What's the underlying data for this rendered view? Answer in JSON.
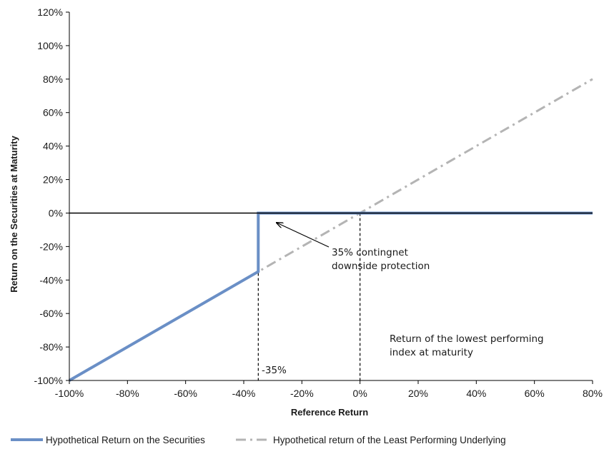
{
  "chart_data": {
    "type": "line",
    "xlabel": "Reference Return",
    "ylabel": "Return on the Securities at Maturity",
    "xlim": [
      -100,
      80
    ],
    "ylim": [
      -100,
      120
    ],
    "x_ticks": [
      -100,
      -80,
      -60,
      -40,
      -20,
      0,
      20,
      40,
      60,
      80
    ],
    "y_ticks": [
      -100,
      -80,
      -60,
      -40,
      -20,
      0,
      20,
      40,
      60,
      80,
      100,
      120
    ],
    "x_tick_labels": [
      "-100%",
      "-80%",
      "-60%",
      "-40%",
      "-20%",
      "0%",
      "20%",
      "40%",
      "60%",
      "80%"
    ],
    "y_tick_labels": [
      "-100%",
      "-80%",
      "-60%",
      "-40%",
      "-20%",
      "0%",
      "20%",
      "40%",
      "60%",
      "80%",
      "100%",
      "120%"
    ],
    "grid": false,
    "legend_position": "bottom",
    "series": [
      {
        "name": "Hypothetical Return on the Securities",
        "color": "#6a8fc6",
        "style": "solid",
        "points": [
          [
            -100,
            -100
          ],
          [
            -35,
            -35
          ],
          [
            -35,
            0
          ],
          [
            80,
            0
          ]
        ]
      },
      {
        "name": "Hypothetical return of the Least Performing Underlying",
        "color": "#b4b4b4",
        "style": "dash-dot",
        "points": [
          [
            -100,
            -100
          ],
          [
            80,
            80
          ]
        ]
      }
    ],
    "reference_lines": [
      {
        "axis": "x",
        "value": -35,
        "style": "dashed",
        "color": "#000000"
      },
      {
        "axis": "x",
        "value": 0,
        "style": "dashed",
        "color": "#000000"
      },
      {
        "axis": "y",
        "value": 0,
        "style": "solid",
        "color": "#000000"
      }
    ],
    "annotations": [
      {
        "id": "protection",
        "lines": [
          "35% contingnet",
          "downside protection"
        ],
        "arrow_to": [
          -35,
          -3
        ]
      },
      {
        "id": "barrier",
        "lines": [
          "-35%"
        ]
      },
      {
        "id": "lowest",
        "lines": [
          "Return of the lowest performing",
          "index at maturity"
        ]
      }
    ]
  }
}
